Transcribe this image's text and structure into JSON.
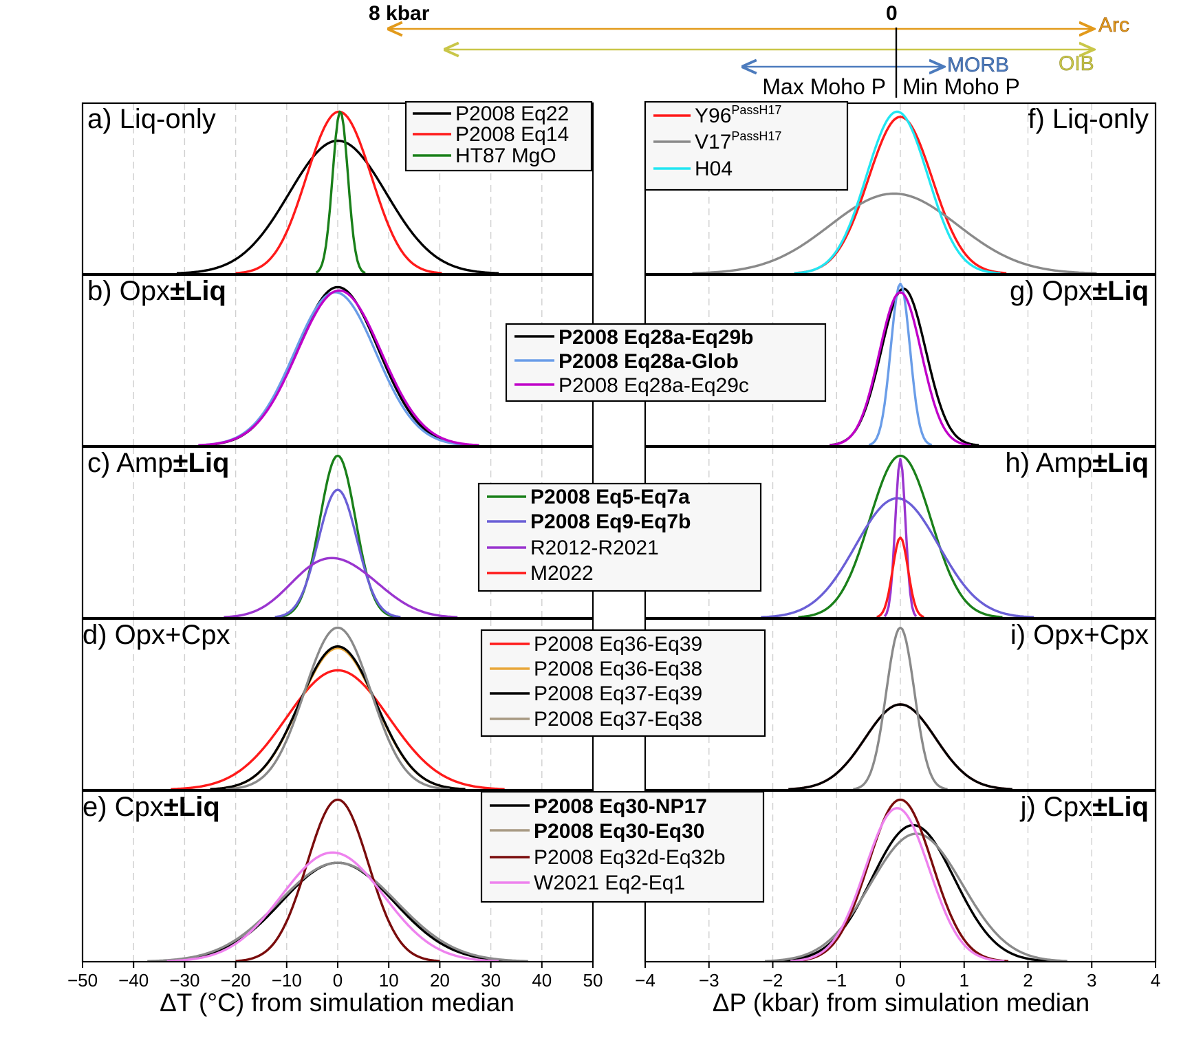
{
  "colors": {
    "black": "#000000",
    "red": "#ff1a1a",
    "green": "#1a801a",
    "cyan": "#22e6f2",
    "grey": "#8a8a8a",
    "lightblue": "#6a9de8",
    "magenta": "#c000c8",
    "slateblue": "#6a5fd6",
    "purple": "#9a35cf",
    "orange": "#e8a73a",
    "tan": "#a89a83",
    "darkred": "#7a0c0c",
    "violet": "#ee82ee",
    "arc": "#e29a1b",
    "oib": "#c9c648",
    "morb": "#4c7bbd"
  },
  "top_annotation": {
    "label_8kbar": "8 kbar",
    "label_zero": "0",
    "arc": "Arc",
    "oib": "OIB",
    "morb": "MORB",
    "max_moho": "Max Moho P",
    "min_moho": "Min Moho P"
  },
  "axes": {
    "left_xlabel": "ΔT (°C) from simulation median",
    "right_xlabel": "ΔP (kbar) from simulation median",
    "left_ticks": [
      "−50",
      "−40",
      "−30",
      "−20",
      "−10",
      "0",
      "10",
      "20",
      "30",
      "40",
      "50"
    ],
    "right_ticks": [
      "−4",
      "−3",
      "−2",
      "−1",
      "0",
      "1",
      "2",
      "3",
      "4"
    ]
  },
  "panels": {
    "a": {
      "pre": "a) Liq-only",
      "bold": ""
    },
    "b": {
      "pre": "b) Opx",
      "bold": "±Liq"
    },
    "c": {
      "pre": "c) Amp",
      "bold": "±Liq"
    },
    "d": {
      "pre": "d) Opx+Cpx",
      "bold": ""
    },
    "e": {
      "pre": "e) Cpx",
      "bold": "±Liq"
    },
    "f": {
      "pre": "f) Liq-only",
      "bold": ""
    },
    "g": {
      "pre": "g) Opx",
      "bold": "±Liq"
    },
    "h": {
      "pre": "h) Amp",
      "bold": "±Liq"
    },
    "i": {
      "pre": "i) Opx+Cpx",
      "bold": ""
    },
    "j": {
      "pre": "j) Cpx",
      "bold": "±Liq"
    }
  },
  "legends": {
    "a": [
      "P2008 Eq22",
      "P2008 Eq14",
      "HT87 MgO"
    ],
    "f": [
      "Y96",
      "V17",
      "H04"
    ],
    "f_super": "PassH17",
    "row2": [
      "P2008 Eq28a-Eq29b",
      "P2008 Eq28a-Glob",
      "P2008 Eq28a-Eq29c"
    ],
    "row3": [
      "P2008 Eq5-Eq7a",
      "P2008 Eq9-Eq7b",
      "R2012-R2021",
      "M2022"
    ],
    "row4": [
      "P2008 Eq36-Eq39",
      "P2008 Eq36-Eq38",
      "P2008 Eq37-Eq39",
      "P2008 Eq37-Eq38"
    ],
    "row5": [
      "P2008 Eq30-NP17",
      "P2008 Eq30-Eq30",
      "P2008 Eq32d-Eq32b",
      "W2021 Eq2-Eq1"
    ]
  },
  "chart_data": [
    {
      "panel": "a",
      "type": "line",
      "xlabel": "ΔT (°C) from simulation median",
      "xlim": [
        -50,
        50
      ],
      "series": [
        {
          "name": "P2008 Eq22",
          "color": "black",
          "kde": {
            "c": 0,
            "s": 9.5,
            "h": 0.78
          }
        },
        {
          "name": "P2008 Eq14",
          "color": "red",
          "peaks": [
            [
              -2.5,
              5.5,
              0.55
            ],
            [
              3,
              5.5,
              0.55
            ]
          ],
          "h": 0.95
        },
        {
          "name": "HT87 MgO",
          "color": "green",
          "kde": {
            "c": 0.5,
            "s": 1.5,
            "h": 0.95
          }
        }
      ]
    },
    {
      "panel": "b",
      "type": "line",
      "xlim": [
        -50,
        50
      ],
      "series": [
        {
          "name": "P2008 Eq28a-Eq29b",
          "color": "black",
          "kde": {
            "c": 0,
            "s": 8,
            "h": 0.93
          }
        },
        {
          "name": "P2008 Eq28a-Glob",
          "color": "lightblue",
          "kde": {
            "c": -0.5,
            "s": 8,
            "h": 0.9
          }
        },
        {
          "name": "P2008 Eq28a-Eq29c",
          "color": "magenta",
          "kde": {
            "c": 0.3,
            "s": 8.2,
            "h": 0.91
          }
        }
      ]
    },
    {
      "panel": "c",
      "type": "line",
      "xlim": [
        -50,
        50
      ],
      "series": [
        {
          "name": "P2008 Eq5-Eq7a",
          "color": "green",
          "kde": {
            "c": 0,
            "s": 3.5,
            "h": 0.95
          }
        },
        {
          "name": "P2008 Eq9-Eq7b",
          "color": "slateblue",
          "kde": {
            "c": 0,
            "s": 3.8,
            "h": 0.75
          }
        },
        {
          "name": "R2012-R2021",
          "color": "purple",
          "peaks": [
            [
              -5,
              6,
              0.45
            ],
            [
              3,
              7,
              0.55
            ]
          ],
          "h": 0.35
        }
      ]
    },
    {
      "panel": "d",
      "type": "line",
      "xlim": [
        -50,
        50
      ],
      "series": [
        {
          "name": "P2008 Eq36-Eq39",
          "color": "red",
          "kde": {
            "c": 0,
            "s": 10,
            "h": 0.7
          }
        },
        {
          "name": "P2008 Eq36-Eq38",
          "color": "orange",
          "kde": {
            "c": 0,
            "s": 7.5,
            "h": 0.83
          }
        },
        {
          "name": "P2008 Eq37-Eq39",
          "color": "black",
          "kde": {
            "c": 0,
            "s": 7.5,
            "h": 0.84
          }
        },
        {
          "name": "P2008 Eq37-Eq38",
          "color": "grey",
          "kde": {
            "c": 0,
            "s": 6.5,
            "h": 0.95
          }
        }
      ]
    },
    {
      "panel": "e",
      "type": "line",
      "xlim": [
        -50,
        50
      ],
      "series": [
        {
          "name": "P2008 Eq30-NP17",
          "color": "black",
          "kde": {
            "c": 0,
            "s": 11,
            "h": 0.58
          }
        },
        {
          "name": "P2008 Eq30-Eq30",
          "color": "grey",
          "kde": {
            "c": 0,
            "s": 11.5,
            "h": 0.58
          }
        },
        {
          "name": "P2008 Eq32d-Eq32b",
          "color": "darkred",
          "kde": {
            "c": 0,
            "s": 6,
            "h": 0.95
          }
        },
        {
          "name": "W2021 Eq2-Eq1",
          "color": "violet",
          "kde": {
            "c": -1,
            "s": 10,
            "h": 0.64
          }
        }
      ]
    },
    {
      "panel": "f",
      "type": "line",
      "xlabel": "ΔP (kbar) from simulation median",
      "xlim": [
        -4,
        4
      ],
      "series": [
        {
          "name": "Y96 PassH17",
          "color": "red",
          "kde": {
            "c": 0,
            "s": 0.5,
            "h": 0.92
          }
        },
        {
          "name": "V17 PassH17",
          "color": "grey",
          "kde": {
            "c": -0.1,
            "s": 1.0,
            "h": 0.47
          }
        },
        {
          "name": "H04",
          "color": "cyan",
          "kde": {
            "c": -0.05,
            "s": 0.48,
            "h": 0.95
          }
        }
      ]
    },
    {
      "panel": "g",
      "type": "line",
      "xlim": [
        -4,
        4
      ],
      "series": [
        {
          "name": "P2008 Eq28a-Eq29b",
          "color": "black",
          "kde": {
            "c": 0.05,
            "s": 0.35,
            "h": 0.92
          }
        },
        {
          "name": "P2008 Eq28a-Glob",
          "color": "lightblue",
          "kde": {
            "c": 0,
            "s": 0.15,
            "h": 0.95
          }
        },
        {
          "name": "P2008 Eq28a-Eq29c",
          "color": "magenta",
          "kde": {
            "c": 0,
            "s": 0.33,
            "h": 0.9
          }
        }
      ]
    },
    {
      "panel": "h",
      "type": "line",
      "xlim": [
        -4,
        4
      ],
      "series": [
        {
          "name": "P2008 Eq5-Eq7a",
          "color": "green",
          "kde": {
            "c": 0,
            "s": 0.48,
            "h": 0.95
          }
        },
        {
          "name": "P2008 Eq9-Eq7b",
          "color": "slateblue",
          "kde": {
            "c": -0.05,
            "s": 0.65,
            "h": 0.7
          }
        },
        {
          "name": "R2012-R2021",
          "color": "purple",
          "kde": {
            "c": 0,
            "s": 0.08,
            "h": 0.93
          }
        },
        {
          "name": "M2022",
          "color": "red",
          "kde": {
            "c": 0,
            "s": 0.12,
            "h": 0.47
          }
        }
      ]
    },
    {
      "panel": "i",
      "type": "line",
      "xlim": [
        -4,
        4
      ],
      "series": [
        {
          "name": "P2008 Eq36-Eq39",
          "color": "red",
          "kde": {
            "c": 0,
            "s": 0.55,
            "h": 0.5
          }
        },
        {
          "name": "P2008 Eq37-Eq39",
          "color": "black",
          "kde": {
            "c": 0,
            "s": 0.55,
            "h": 0.5
          }
        },
        {
          "name": "P2008 Eq37-Eq38",
          "color": "grey",
          "kde": {
            "c": 0,
            "s": 0.22,
            "h": 0.95
          }
        }
      ]
    },
    {
      "panel": "j",
      "type": "line",
      "xlim": [
        -4,
        4
      ],
      "series": [
        {
          "name": "P2008 Eq30-NP17",
          "color": "black",
          "kde": {
            "c": 0.2,
            "s": 0.65,
            "h": 0.8
          }
        },
        {
          "name": "P2008 Eq30-Eq30",
          "color": "grey",
          "kde": {
            "c": 0.25,
            "s": 0.72,
            "h": 0.75
          }
        },
        {
          "name": "P2008 Eq32d-Eq32b",
          "color": "darkred",
          "kde": {
            "c": 0,
            "s": 0.5,
            "h": 0.95
          }
        },
        {
          "name": "W2021 Eq2-Eq1",
          "color": "violet",
          "kde": {
            "c": -0.05,
            "s": 0.5,
            "h": 0.9
          }
        }
      ]
    }
  ]
}
